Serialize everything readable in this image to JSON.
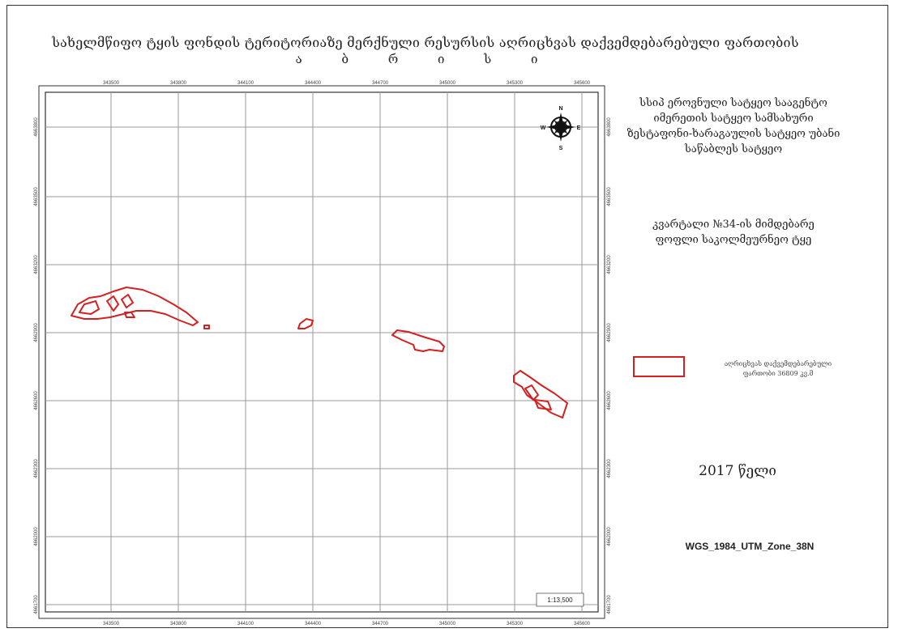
{
  "title": {
    "line1": "სახელმწიფო ტყის ფონდის ტერიტორიაზე მერქნული რესურსის აღრიცხვას დაქვემდებარებული ფართობის",
    "line2": "ა ბ რ ი ს ი"
  },
  "organization": {
    "lines": [
      "სსიპ ეროვნული სატყეო სააგენტო",
      "იმერეთის სატყეო სამსახური",
      "ზესტაფონი-ხარაგაულის სატყეო უბანი",
      "საწაბლეს სატყეო"
    ]
  },
  "subtitle": {
    "lines": [
      "კვარტალი №34-ის მიმდებარე",
      "ფოფლი საკოლმეურნეო ტყე"
    ]
  },
  "legend": {
    "label_line1": "აღრიცხვას დაქვემდებარებული",
    "label_line2": "ფართობი 36809 კვ.მ",
    "color": "#d42020"
  },
  "year_text": "2017 წელი",
  "crs_text": "WGS_1984_UTM_Zone_38N",
  "scale_text": "1:13,500",
  "compass": {
    "n": "N",
    "s": "S",
    "e": "E",
    "w": "W"
  },
  "x_ticks": [
    "343500",
    "343800",
    "344100",
    "344400",
    "344700",
    "345000",
    "345300",
    "345600"
  ],
  "y_ticks": [
    "4663800",
    "4663500",
    "4663200",
    "4662900",
    "4662600",
    "4662300",
    "4662000",
    "4661700"
  ],
  "colors": {
    "polygon": "#d42020",
    "grid": "#9a9a9a",
    "frame": "#333333"
  }
}
